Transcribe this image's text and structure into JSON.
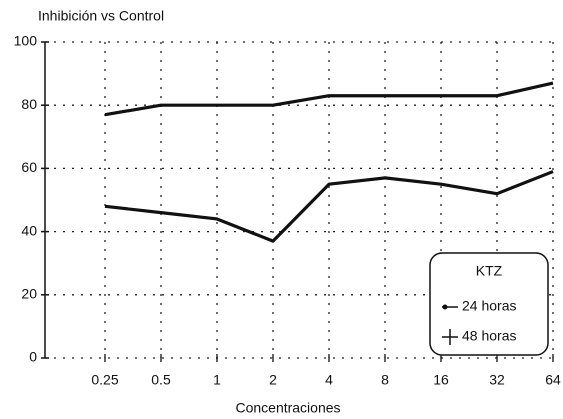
{
  "chart_data": {
    "type": "line",
    "title": "Inhibición vs Control",
    "xlabel": "Concentraciones",
    "categories": [
      "0.25",
      "0.5",
      "1",
      "2",
      "4",
      "8",
      "16",
      "32",
      "64"
    ],
    "series": [
      {
        "name": "24 horas",
        "color": "#111111",
        "marker": "dot",
        "values": [
          48,
          46,
          44,
          37,
          55,
          57,
          55,
          52,
          59
        ]
      },
      {
        "name": "48 horas",
        "color": "#111111",
        "marker": "plus",
        "values": [
          77,
          80,
          80,
          80,
          83,
          83,
          83,
          83,
          87
        ]
      }
    ],
    "ylim": [
      0,
      100
    ],
    "yticks": [
      0,
      20,
      40,
      60,
      80,
      100
    ],
    "grid": true,
    "legend_title": "KTZ",
    "legend": "lower right"
  }
}
